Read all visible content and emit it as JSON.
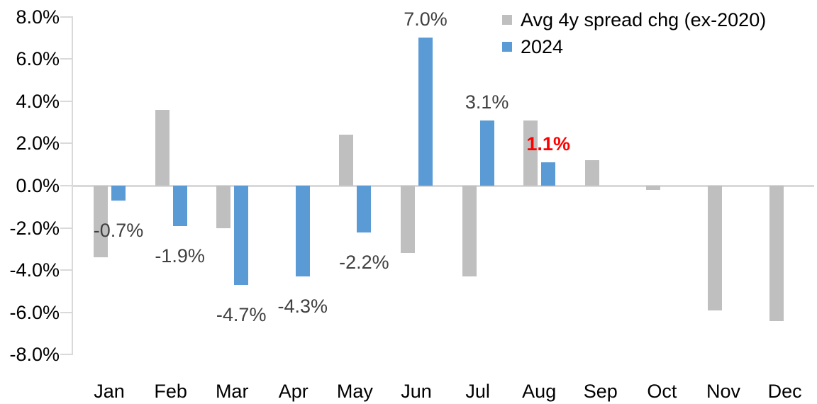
{
  "chart_data": {
    "type": "bar",
    "title": "",
    "categories": [
      "Jan",
      "Feb",
      "Mar",
      "Apr",
      "May",
      "Jun",
      "Jul",
      "Aug",
      "Sep",
      "Oct",
      "Nov",
      "Dec"
    ],
    "series": [
      {
        "name": "Avg 4y spread chg (ex-2020)",
        "color": "#BFBFBF",
        "values": [
          -3.4,
          3.6,
          -2.0,
          0.0,
          2.4,
          -3.2,
          -4.3,
          3.1,
          1.2,
          -0.2,
          -5.9,
          -6.4
        ]
      },
      {
        "name": "2024",
        "color": "#5B9BD5",
        "values": [
          -0.7,
          -1.9,
          -4.7,
          -4.3,
          -2.2,
          7.0,
          3.1,
          1.1,
          null,
          null,
          null,
          null
        ]
      }
    ],
    "point_labels": [
      {
        "month_index": 0,
        "series": "2024",
        "text": "-0.7%",
        "color": "#404040",
        "bold": false
      },
      {
        "month_index": 1,
        "series": "2024",
        "text": "-1.9%",
        "color": "#404040",
        "bold": false
      },
      {
        "month_index": 2,
        "series": "2024",
        "text": "-4.7%",
        "color": "#404040",
        "bold": false
      },
      {
        "month_index": 3,
        "series": "2024",
        "text": "-4.3%",
        "color": "#404040",
        "bold": false
      },
      {
        "month_index": 4,
        "series": "2024",
        "text": "-2.2%",
        "color": "#404040",
        "bold": false
      },
      {
        "month_index": 5,
        "series": "2024",
        "text": "7.0%",
        "color": "#404040",
        "bold": false
      },
      {
        "month_index": 6,
        "series": "2024",
        "text": "3.1%",
        "color": "#404040",
        "bold": false
      },
      {
        "month_index": 7,
        "series": "2024",
        "text": "1.1%",
        "color": "#FF0000",
        "bold": true
      }
    ],
    "y_axis": {
      "min": -8,
      "max": 8,
      "tick_step": 2,
      "tick_labels": [
        "8.0%",
        "6.0%",
        "4.0%",
        "2.0%",
        "0.0%",
        "-2.0%",
        "-4.0%",
        "-6.0%",
        "-8.0%"
      ]
    },
    "legend": {
      "position": "top-right"
    },
    "grid": "zero-line-only",
    "axis_color": "#D9D9D9",
    "tick_text_color": "#000000",
    "background": "#FFFFFF"
  }
}
